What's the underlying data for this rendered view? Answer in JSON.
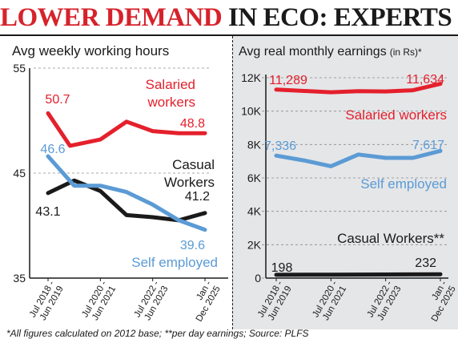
{
  "headline": {
    "part1": "LOWER DEMAND",
    "part2": "IN ECO: EXPERTS"
  },
  "footnote": "*All figures calculated on 2012 base; **per day earnings; Source: PLFS",
  "colors": {
    "salaried": "#e4202c",
    "self_employed": "#5b9bd5",
    "casual": "#1a1a1a",
    "accent": "#d6232b",
    "panel_bg": "#e5e6e8"
  },
  "chart_data": [
    {
      "type": "line",
      "title": "Avg weekly working hours",
      "categories": [
        "Jul 2018 - Jun 2019",
        "Jul 2020 - Jun 2021",
        "Jul 2022 - Jun 2023",
        "Jan - Dec 2025"
      ],
      "ylim": [
        35,
        55
      ],
      "yticks": [
        "35",
        "45",
        "55"
      ],
      "series": [
        {
          "name": "Salaried workers",
          "color": "#e4202c",
          "x": [
            0,
            0.42,
            1,
            1.5,
            2,
            2.5,
            3
          ],
          "values": [
            50.7,
            47.6,
            48.2,
            49.9,
            49.0,
            48.8,
            48.8
          ],
          "first_label": "50.7",
          "last_label": "48.8"
        },
        {
          "name": "Casual Workers",
          "color": "#1a1a1a",
          "x": [
            0,
            0.5,
            1,
            1.5,
            2,
            2.5,
            3
          ],
          "values": [
            43.1,
            44.3,
            43.3,
            41.0,
            40.8,
            40.5,
            41.2
          ],
          "first_label": "43.1",
          "last_label": "41.2"
        },
        {
          "name": "Self employed",
          "color": "#5b9bd5",
          "x": [
            0,
            0.5,
            1,
            1.5,
            2,
            2.5,
            3
          ],
          "values": [
            46.6,
            43.8,
            43.8,
            43.2,
            42.0,
            40.5,
            39.6
          ],
          "first_label": "46.6",
          "last_label": "39.6"
        }
      ]
    },
    {
      "type": "line",
      "title": "Avg real monthly earnings",
      "title_suffix": "(in Rs)*",
      "categories": [
        "Jul 2018 - Jun 2019",
        "Jul 2020 - Jun 2021",
        "Jul 2022 - Jun 2023",
        "Jan - Dec 2025"
      ],
      "ylim": [
        0,
        12000
      ],
      "yticks": [
        "0",
        "2K",
        "4K",
        "6K",
        "8K",
        "10K",
        "12K"
      ],
      "series": [
        {
          "name": "Salaried workers",
          "color": "#e4202c",
          "x": [
            0,
            1,
            1.5,
            2,
            2.5,
            3
          ],
          "values": [
            11289,
            11130,
            11200,
            11180,
            11250,
            11634
          ],
          "first_label": "11,289",
          "last_label": "11,634"
        },
        {
          "name": "Self employed",
          "color": "#5b9bd5",
          "x": [
            0,
            0.5,
            1,
            1.5,
            2,
            2.5,
            3
          ],
          "values": [
            7336,
            7050,
            6700,
            7400,
            7200,
            7200,
            7617
          ],
          "first_label": "7,336",
          "last_label": "7,617"
        },
        {
          "name": "Casual Workers**",
          "color": "#1a1a1a",
          "x": [
            0,
            1,
            2,
            3
          ],
          "values": [
            198,
            205,
            218,
            232
          ],
          "first_label": "198",
          "last_label": "232"
        }
      ]
    }
  ]
}
